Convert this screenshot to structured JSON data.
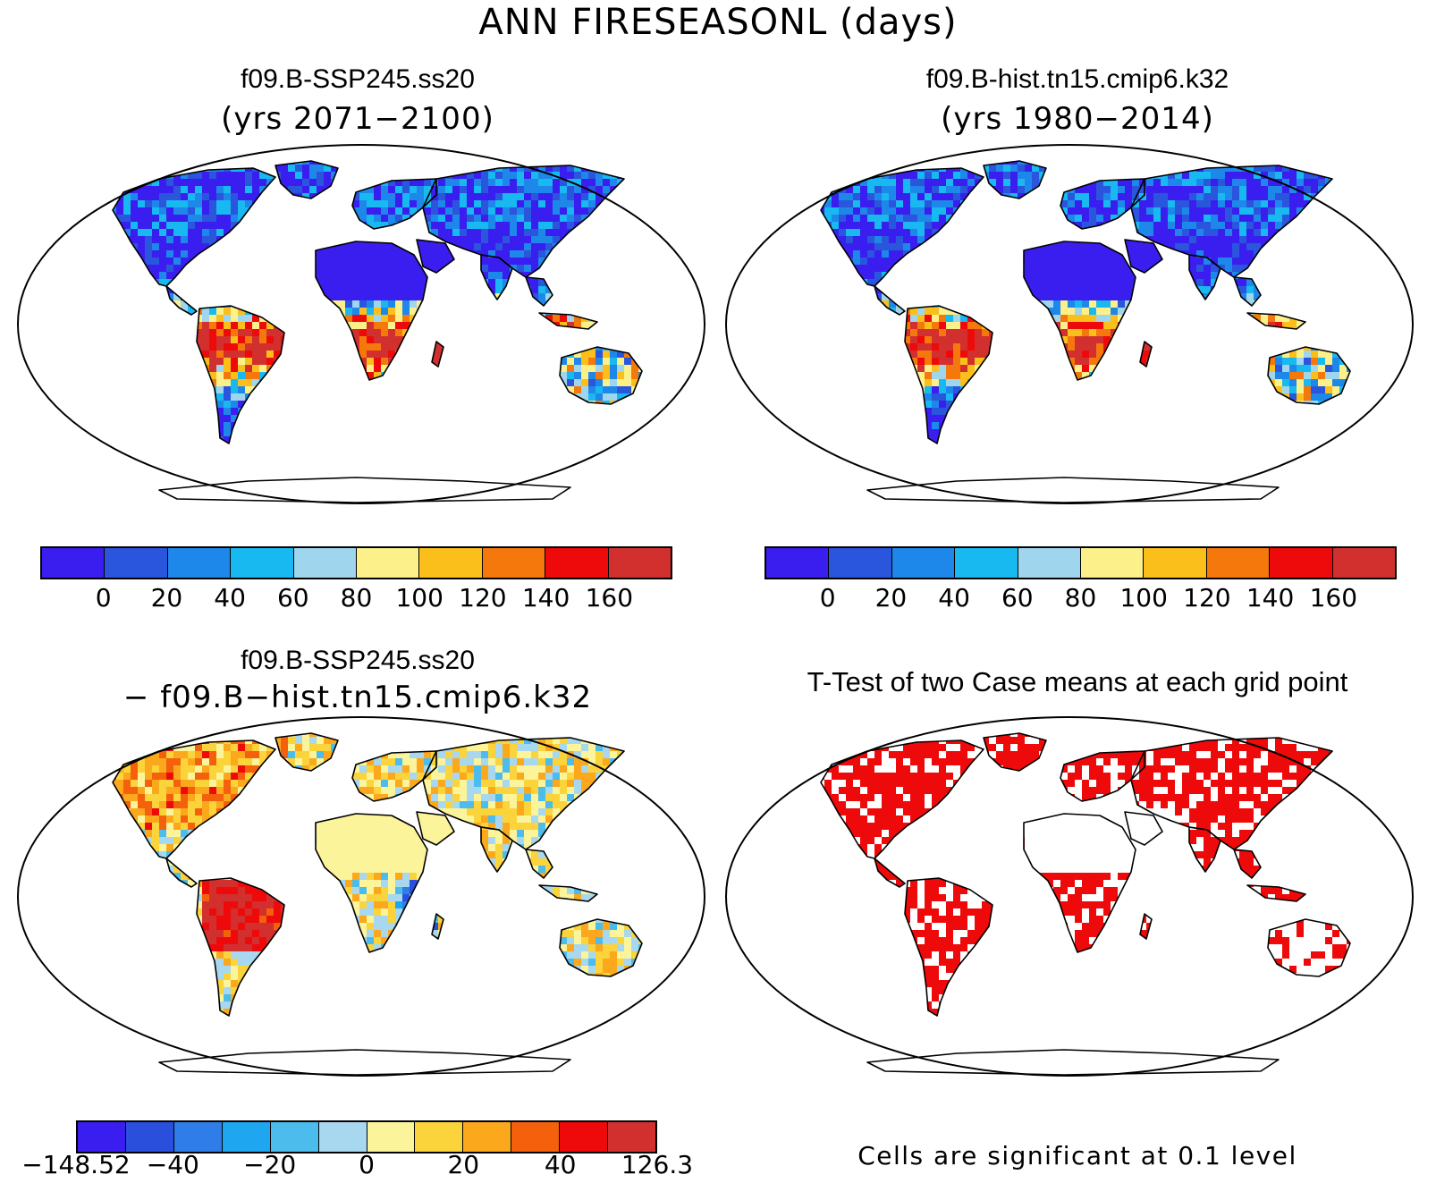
{
  "title": "ANN FIRESEASONL (days)",
  "panels": {
    "top_left": {
      "title": "f09.B-SSP245.ss20",
      "subtitle": "(yrs 2071−2100)",
      "colors": [
        "#3a1ef0",
        "#2a55dd",
        "#1e88ea",
        "#18b8f0",
        "#9fd6ee",
        "#fbf08a",
        "#fbbf1c",
        "#f5780c",
        "#ee0a0a",
        "#d2302e"
      ],
      "ticks": [
        "0",
        "20",
        "40",
        "60",
        "80",
        "100",
        "120",
        "140",
        "160"
      ]
    },
    "top_right": {
      "title": "f09.B-hist.tn15.cmip6.k32",
      "subtitle": "(yrs 1980−2014)",
      "colors": [
        "#3a1ef0",
        "#2a55dd",
        "#1e88ea",
        "#18b8f0",
        "#9fd6ee",
        "#fbf08a",
        "#fbbf1c",
        "#f5780c",
        "#ee0a0a",
        "#d2302e"
      ],
      "ticks": [
        "0",
        "20",
        "40",
        "60",
        "80",
        "100",
        "120",
        "140",
        "160"
      ]
    },
    "bottom_left": {
      "title": "f09.B-SSP245.ss20",
      "subtitle": "− f09.B−hist.tn15.cmip6.k32",
      "colors": [
        "#3a1ef0",
        "#2a4fdc",
        "#2f7de8",
        "#1ea6f0",
        "#4bbcec",
        "#a7d8ef",
        "#fbf49a",
        "#fbd33a",
        "#fba81c",
        "#f5600c",
        "#ee0a0a",
        "#d2302e"
      ],
      "ticks": [
        "−148.52",
        "−40",
        "−20",
        "0",
        "20",
        "40",
        "126.3"
      ]
    },
    "bottom_right": {
      "title": "T-Test of two Case means at each grid point",
      "note": "Cells are significant at 0.1 level",
      "significant_color": "#ee0a0a"
    }
  }
}
